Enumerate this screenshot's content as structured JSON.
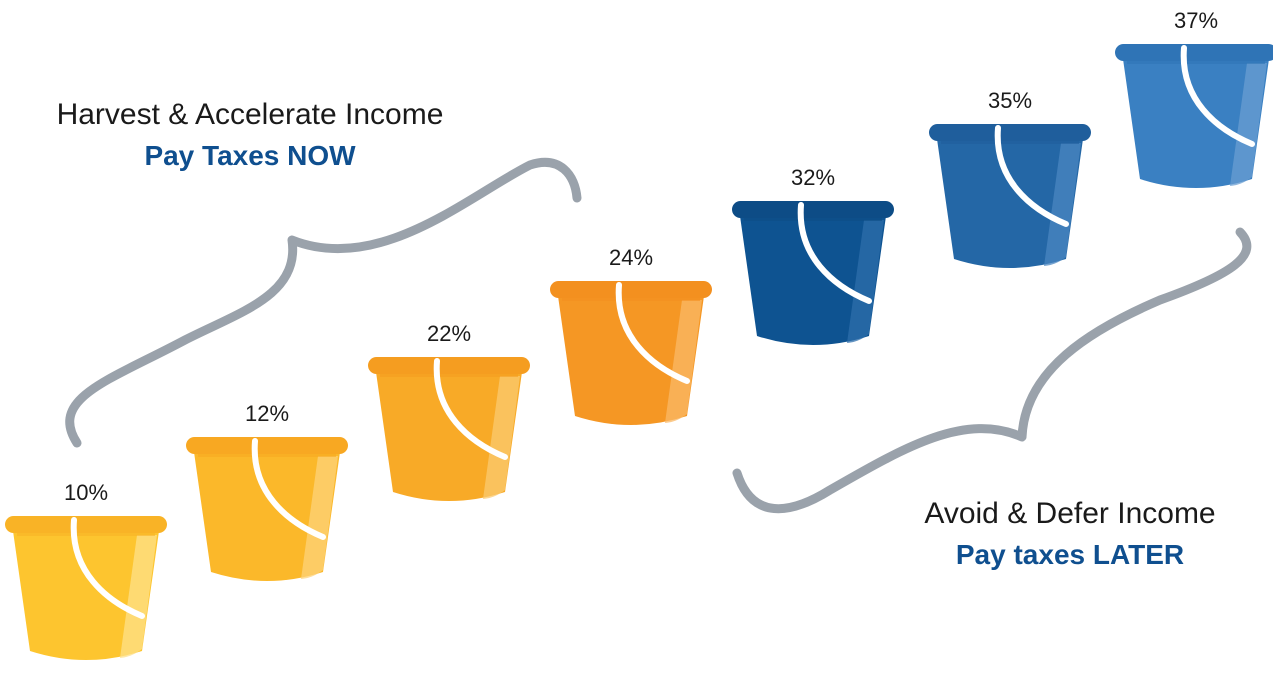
{
  "colors": {
    "brace": "#9aa2ab",
    "emphasis": "#0f4f8f",
    "handle": "#ffffff"
  },
  "left_caption": {
    "line1": "Harvest & Accelerate Income",
    "line2": "Pay Taxes NOW"
  },
  "right_caption": {
    "line1": "Avoid & Defer Income",
    "line2": "Pay taxes LATER"
  },
  "buckets": [
    {
      "label": "10%",
      "body": "#fdc52f",
      "rim": "#f9b326",
      "light": "#fee08a"
    },
    {
      "label": "12%",
      "body": "#fbb82a",
      "rim": "#f8a822",
      "light": "#fdd37a"
    },
    {
      "label": "22%",
      "body": "#f8aa27",
      "rim": "#f59d20",
      "light": "#fbc970"
    },
    {
      "label": "24%",
      "body": "#f59724",
      "rim": "#f3901f",
      "light": "#f9b865"
    },
    {
      "label": "32%",
      "body": "#0e5391",
      "rim": "#0d4c86",
      "light": "#2d6eab"
    },
    {
      "label": "35%",
      "body": "#2467a6",
      "rim": "#1f5e9c",
      "light": "#4a86c0"
    },
    {
      "label": "37%",
      "body": "#3a80c2",
      "rim": "#2f74b6",
      "light": "#6a9ed2"
    }
  ]
}
